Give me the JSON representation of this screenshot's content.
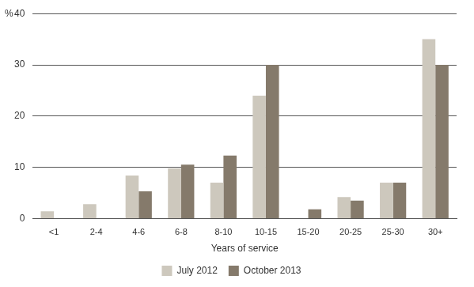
{
  "chart_data": {
    "type": "bar",
    "y_label": "%",
    "x_label": "Years of service",
    "categories": [
      "<1",
      "2-4",
      "4-6",
      "6-8",
      "8-10",
      "10-15",
      "15-20",
      "20-25",
      "25-30",
      "30+"
    ],
    "series": [
      {
        "name": "July 2012",
        "color": "#cdc8bd",
        "values": [
          1.4,
          2.8,
          8.4,
          9.8,
          7,
          24,
          0,
          4.2,
          7,
          35
        ]
      },
      {
        "name": "October 2013",
        "color": "#857a6b",
        "values": [
          0,
          0,
          5.3,
          10.5,
          12.3,
          30,
          1.8,
          3.5,
          7,
          30
        ]
      }
    ],
    "ylim": [
      0,
      40
    ],
    "yticks": [
      0,
      10,
      20,
      30,
      40
    ],
    "grid": true,
    "legend": "bottom"
  }
}
